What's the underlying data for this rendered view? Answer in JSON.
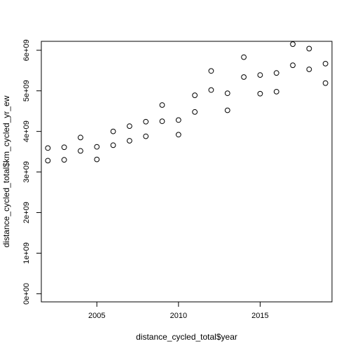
{
  "chart_data": {
    "type": "scatter",
    "title": "",
    "xlabel": "distance_cycled_total$year",
    "ylabel": "distance_cycled_total$km_cycled_yr_ew",
    "xlim": [
      2001.6,
      2019.4
    ],
    "ylim": [
      -200000000.0,
      6220000000.0
    ],
    "x_ticks": [
      2005,
      2010,
      2015
    ],
    "x_tick_labels": [
      "2005",
      "2010",
      "2015"
    ],
    "y_ticks": [
      0,
      1000000000.0,
      2000000000.0,
      3000000000.0,
      4000000000.0,
      5000000000.0,
      6000000000.0
    ],
    "y_tick_labels": [
      "0e+00",
      "1e+09",
      "2e+09",
      "3e+09",
      "4e+09",
      "5e+09",
      "6e+09"
    ],
    "marker": "open-circle",
    "grid": false,
    "points": [
      {
        "x": 2002,
        "y": 3590000000.0
      },
      {
        "x": 2002,
        "y": 3280000000.0
      },
      {
        "x": 2003,
        "y": 3610000000.0
      },
      {
        "x": 2003,
        "y": 3300000000.0
      },
      {
        "x": 2004,
        "y": 3850000000.0
      },
      {
        "x": 2004,
        "y": 3520000000.0
      },
      {
        "x": 2005,
        "y": 3620000000.0
      },
      {
        "x": 2005,
        "y": 3310000000.0
      },
      {
        "x": 2006,
        "y": 4000000000.0
      },
      {
        "x": 2006,
        "y": 3660000000.0
      },
      {
        "x": 2007,
        "y": 4130000000.0
      },
      {
        "x": 2007,
        "y": 3770000000.0
      },
      {
        "x": 2008,
        "y": 4240000000.0
      },
      {
        "x": 2008,
        "y": 3880000000.0
      },
      {
        "x": 2009,
        "y": 4650000000.0
      },
      {
        "x": 2009,
        "y": 4250000000.0
      },
      {
        "x": 2010,
        "y": 4280000000.0
      },
      {
        "x": 2010,
        "y": 3920000000.0
      },
      {
        "x": 2011,
        "y": 4890000000.0
      },
      {
        "x": 2011,
        "y": 4480000000.0
      },
      {
        "x": 2012,
        "y": 5490000000.0
      },
      {
        "x": 2012,
        "y": 5020000000.0
      },
      {
        "x": 2013,
        "y": 4940000000.0
      },
      {
        "x": 2013,
        "y": 4520000000.0
      },
      {
        "x": 2014,
        "y": 5830000000.0
      },
      {
        "x": 2014,
        "y": 5340000000.0
      },
      {
        "x": 2015,
        "y": 5390000000.0
      },
      {
        "x": 2015,
        "y": 4930000000.0
      },
      {
        "x": 2016,
        "y": 5440000000.0
      },
      {
        "x": 2016,
        "y": 4980000000.0
      },
      {
        "x": 2017,
        "y": 6150000000.0
      },
      {
        "x": 2017,
        "y": 5630000000.0
      },
      {
        "x": 2018,
        "y": 6040000000.0
      },
      {
        "x": 2018,
        "y": 5530000000.0
      },
      {
        "x": 2019,
        "y": 5670000000.0
      },
      {
        "x": 2019,
        "y": 5190000000.0
      }
    ]
  }
}
